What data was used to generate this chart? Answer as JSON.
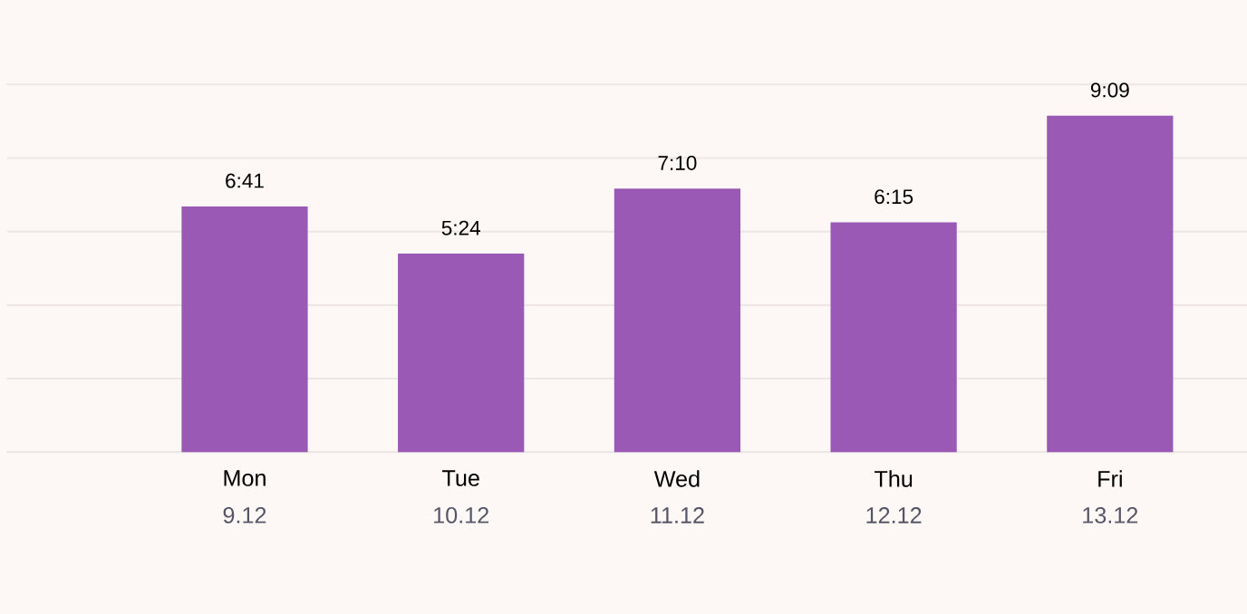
{
  "chart_data": {
    "type": "bar",
    "categories": [
      "Mon",
      "Tue",
      "Wed",
      "Thu",
      "Fri"
    ],
    "values": [
      6.683,
      5.4,
      7.167,
      6.25,
      9.15
    ],
    "value_labels": [
      "6:41",
      "5:24",
      "7:10",
      "6:15",
      "9:09"
    ],
    "color": "#9b59b6",
    "ylim": [
      0,
      12.3
    ],
    "yticks": [
      {
        "value": 0,
        "label": null
      },
      {
        "value": 2,
        "label": null
      },
      {
        "value": 4,
        "label": null
      },
      {
        "value": 6,
        "label": null
      },
      {
        "value": 8,
        "label": null
      },
      {
        "value": 10,
        "label": null
      }
    ],
    "grid": "y",
    "tick_labels": "x",
    "annotations": [
      "9.12",
      "10.12",
      "11.12",
      "12.12",
      "13.12"
    ]
  }
}
